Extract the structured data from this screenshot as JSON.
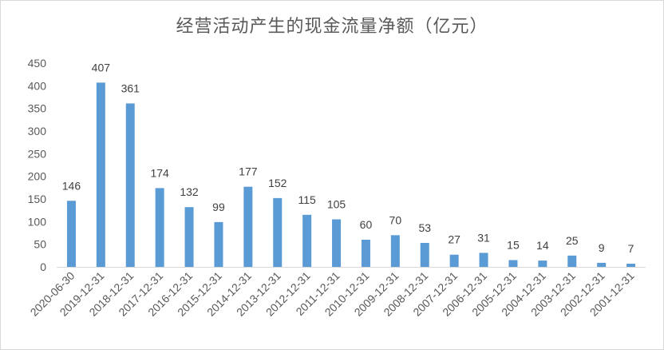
{
  "chart_data": {
    "type": "bar",
    "title": "经营活动产生的现金流量净额（亿元）",
    "categories": [
      "2020-06-30",
      "2019-12-31",
      "2018-12-31",
      "2017-12-31",
      "2016-12-31",
      "2015-12-31",
      "2014-12-31",
      "2013-12-31",
      "2012-12-31",
      "2011-12-31",
      "2010-12-31",
      "2009-12-31",
      "2008-12-31",
      "2007-12-31",
      "2006-12-31",
      "2005-12-31",
      "2004-12-31",
      "2003-12-31",
      "2002-12-31",
      "2001-12-31"
    ],
    "values": [
      146,
      407,
      361,
      174,
      132,
      99,
      177,
      152,
      115,
      105,
      60,
      70,
      53,
      27,
      31,
      15,
      14,
      25,
      9,
      7
    ],
    "data_labels": [
      "146",
      "407",
      "361",
      "174",
      "132",
      "99",
      "177",
      "152",
      "115",
      "105",
      "60",
      "70",
      "53",
      "27",
      "31",
      "15",
      "14",
      "25",
      "9",
      "7"
    ],
    "ylim": [
      0,
      450
    ],
    "yticks": [
      "0",
      "50",
      "100",
      "150",
      "200",
      "250",
      "300",
      "350",
      "400",
      "450"
    ],
    "ytick_values": [
      0,
      50,
      100,
      150,
      200,
      250,
      300,
      350,
      400,
      450
    ],
    "xlabel": "",
    "ylabel": "",
    "grid": false,
    "legend": "none",
    "bar_color": "#5b9bd5",
    "axis_color": "#d9d9d9"
  }
}
